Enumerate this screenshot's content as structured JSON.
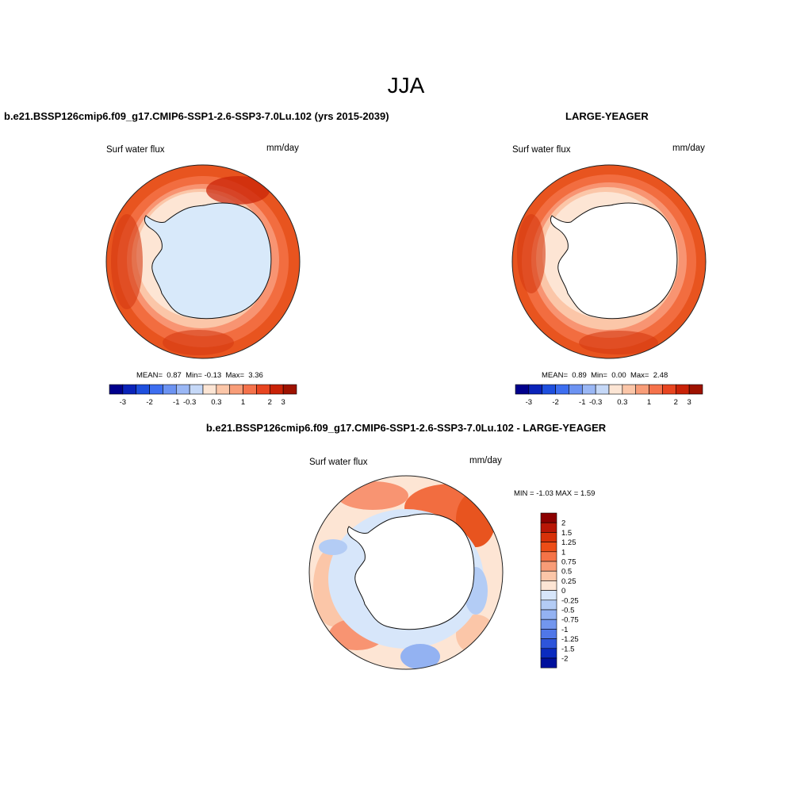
{
  "title": "JJA",
  "panels": [
    {
      "name": "case",
      "title": "b.e21.BSSP126cmip6.f09_g17.CMIP6-SSP1-2.6-SSP3-7.0Lu.102 (yrs 2015-2039)",
      "variable": "Surf water flux",
      "units": "mm/day",
      "stats": {
        "mean": "0.87",
        "min": "-0.13",
        "max": "3.36"
      },
      "colorbar_ticks": [
        "-3",
        "-2",
        "-1",
        "-0.3",
        "0.3",
        "1",
        "2",
        "3"
      ]
    },
    {
      "name": "obs",
      "title": "LARGE-YEAGER",
      "variable": "Surf water flux",
      "units": "mm/day",
      "stats": {
        "mean": "0.89",
        "min": "0.00",
        "max": "2.48"
      },
      "colorbar_ticks": [
        "-3",
        "-2",
        "-1",
        "-0.3",
        "0.3",
        "1",
        "2",
        "3"
      ]
    },
    {
      "name": "diff",
      "title": "b.e21.BSSP126cmip6.f09_g17.CMIP6-SSP1-2.6-SSP3-7.0Lu.102 - LARGE-YEAGER",
      "variable": "Surf water flux",
      "units": "mm/day",
      "minmax": "MIN =  -1.03 MAX =   1.59",
      "colorbar_ticks": [
        "2",
        "1.5",
        "1.25",
        "1",
        "0.75",
        "0.5",
        "0.25",
        "0",
        "-0.25",
        "-0.5",
        "-0.75",
        "-1",
        "-1.25",
        "-1.5",
        "-2"
      ]
    }
  ],
  "stat_labels": {
    "mean": "MEAN=",
    "min": "Min=",
    "max": "Max="
  },
  "colors": {
    "horizontal_bar": [
      "#00008c",
      "#0a23b9",
      "#1e4fde",
      "#3d6ef0",
      "#6c93f2",
      "#9ab7f5",
      "#c5d8f7",
      "#fce5d4",
      "#fbc6a8",
      "#f89d78",
      "#f5724b",
      "#e84520",
      "#c92207",
      "#9e1200"
    ],
    "vertical_bar": [
      "#8c0000",
      "#b81606",
      "#d73109",
      "#ec4d17",
      "#f57347",
      "#f89c77",
      "#fbc6a8",
      "#fde5d4",
      "#d7e6fa",
      "#b3ccf5",
      "#93b2f2",
      "#7296ee",
      "#5077e8",
      "#2e55da",
      "#0b2bbf",
      "#00109c"
    ],
    "map_fill": [
      "#fde5d4",
      "#fbc6a8",
      "#f89d78",
      "#f5724b",
      "#e84520",
      "#c92207"
    ],
    "land": "#d8e9fa"
  }
}
